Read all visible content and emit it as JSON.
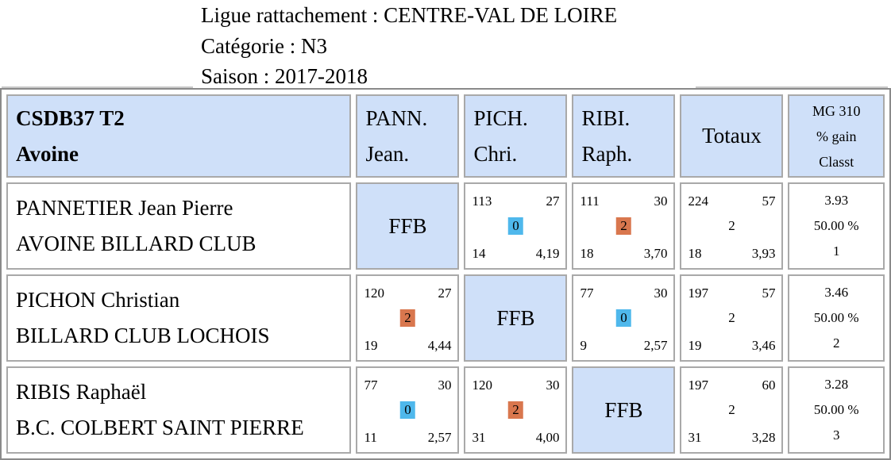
{
  "header": {
    "ligue": "Ligue rattachement : CENTRE-VAL DE LOIRE",
    "categorie": "Catégorie : N3",
    "saison": "Saison : 2017-2018"
  },
  "table": {
    "team_code": "CSDB37 T2",
    "team_location": "Avoine",
    "columns": [
      {
        "line1": "PANN.",
        "line2": "Jean."
      },
      {
        "line1": "PICH.",
        "line2": "Chri."
      },
      {
        "line1": "RIBI.",
        "line2": "Raph."
      }
    ],
    "totals_label": "Totaux",
    "mg_header": {
      "line1": "MG 310",
      "line2": "% gain",
      "line3": "Classt"
    },
    "ffb_label": "FFB",
    "rows": [
      {
        "name": "PANNETIER Jean Pierre",
        "club": "AVOINE BILLARD CLUB",
        "matches": [
          null,
          {
            "points": "113",
            "innings": "27",
            "result": "0",
            "series": "14",
            "avg": "4,19"
          },
          {
            "points": "111",
            "innings": "30",
            "result": "2",
            "series": "18",
            "avg": "3,70"
          }
        ],
        "totals": {
          "points": "224",
          "innings": "57",
          "result": "2",
          "series": "18",
          "avg": "3,93"
        },
        "mg": {
          "avg": "3.93",
          "pct": "50.00 %",
          "rank": "1"
        }
      },
      {
        "name": "PICHON Christian",
        "club": "BILLARD CLUB LOCHOIS",
        "matches": [
          {
            "points": "120",
            "innings": "27",
            "result": "2",
            "series": "19",
            "avg": "4,44"
          },
          null,
          {
            "points": "77",
            "innings": "30",
            "result": "0",
            "series": "9",
            "avg": "2,57"
          }
        ],
        "totals": {
          "points": "197",
          "innings": "57",
          "result": "2",
          "series": "19",
          "avg": "3,46"
        },
        "mg": {
          "avg": "3.46",
          "pct": "50.00 %",
          "rank": "2"
        }
      },
      {
        "name": "RIBIS Raphaël",
        "club": "B.C. COLBERT SAINT PIERRE",
        "matches": [
          {
            "points": "77",
            "innings": "30",
            "result": "0",
            "series": "11",
            "avg": "2,57"
          },
          {
            "points": "120",
            "innings": "30",
            "result": "2",
            "series": "31",
            "avg": "4,00"
          },
          null
        ],
        "totals": {
          "points": "197",
          "innings": "60",
          "result": "2",
          "series": "31",
          "avg": "3,28"
        },
        "mg": {
          "avg": "3.28",
          "pct": "50.00 %",
          "rank": "3"
        }
      }
    ]
  }
}
